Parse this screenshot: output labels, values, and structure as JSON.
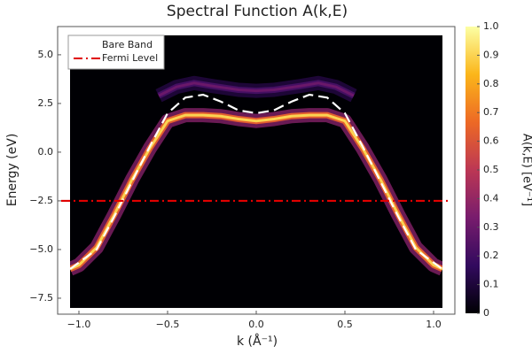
{
  "chart_data": {
    "type": "heatmap",
    "title": "Spectral Function A(k,E)",
    "x_label": "k (Å⁻¹)",
    "y_label": "Energy (eV)",
    "colorbar_label": "A(k,E) [eV⁻¹]",
    "xlim": [
      -1.12,
      1.12
    ],
    "ylim": [
      -8.32,
      6.45
    ],
    "xticks": [
      {
        "value": -1.0,
        "label": "−1.0"
      },
      {
        "value": -0.5,
        "label": "−0.5"
      },
      {
        "value": 0.0,
        "label": "0.0"
      },
      {
        "value": 0.5,
        "label": "0.5"
      },
      {
        "value": 1.0,
        "label": "1.0"
      }
    ],
    "yticks": [
      {
        "value": -7.5,
        "label": "−7.5"
      },
      {
        "value": -5.0,
        "label": "−5.0"
      },
      {
        "value": -2.5,
        "label": "−2.5"
      },
      {
        "value": 0.0,
        "label": "0.0"
      },
      {
        "value": 2.5,
        "label": "2.5"
      },
      {
        "value": 5.0,
        "label": "5.0"
      }
    ],
    "heatmap_xlim": [
      -1.05,
      1.05
    ],
    "heatmap_ylim": [
      -8.0,
      6.0
    ],
    "clim": [
      0,
      1
    ],
    "cticks": [
      0,
      0.1,
      0.2,
      0.3,
      0.4,
      0.5,
      0.6,
      0.7,
      0.8,
      0.9,
      {
        "value": 1.0,
        "label": "1.0"
      }
    ],
    "colormap": [
      "#000004",
      "#320a5e",
      "#781c6d",
      "#bc3754",
      "#ed6925",
      "#fbb61a",
      "#fcffa4"
    ],
    "intensity_bands": [
      {
        "intensity": 0.3,
        "x": [
          -0.55,
          -0.45,
          -0.35,
          -0.25,
          -0.1,
          0.0,
          0.1,
          0.25,
          0.35,
          0.45,
          0.55
        ],
        "values": [
          2.9,
          3.35,
          3.55,
          3.4,
          3.2,
          3.15,
          3.2,
          3.4,
          3.55,
          3.35,
          2.9
        ]
      },
      {
        "intensity": 0.9,
        "x": [
          -1.05,
          -1.0,
          -0.9,
          -0.8,
          -0.7,
          -0.6,
          -0.5,
          -0.4,
          -0.3,
          -0.2,
          -0.1,
          0.0,
          0.1,
          0.2,
          0.3,
          0.4,
          0.5,
          0.6,
          0.7,
          0.8,
          0.9,
          1.0,
          1.05
        ],
        "values": [
          -6.0,
          -5.8,
          -4.9,
          -3.2,
          -1.4,
          0.2,
          1.6,
          1.9,
          1.9,
          1.85,
          1.7,
          1.6,
          1.7,
          1.85,
          1.9,
          1.9,
          1.6,
          0.2,
          -1.4,
          -3.2,
          -4.9,
          -5.8,
          -6.0
        ]
      }
    ],
    "series": [
      {
        "name": "Bare Band",
        "color": "#ffffff",
        "x": [
          -1.05,
          -0.9,
          -0.8,
          -0.7,
          -0.6,
          -0.5,
          -0.4,
          -0.3,
          -0.2,
          -0.1,
          0.0,
          0.1,
          0.2,
          0.3,
          0.4,
          0.5,
          0.6,
          0.7,
          0.8,
          0.9,
          1.05
        ],
        "values": [
          -6.0,
          -5.0,
          -3.3,
          -1.5,
          0.3,
          2.0,
          2.8,
          2.95,
          2.6,
          2.15,
          2.0,
          2.15,
          2.6,
          2.95,
          2.8,
          2.0,
          0.3,
          -1.5,
          -3.3,
          -5.0,
          -6.0
        ]
      },
      {
        "name": "Fermi Level",
        "color": "#e00000",
        "x": [
          -1.1,
          1.1
        ],
        "values": [
          -2.5,
          -2.5
        ]
      }
    ],
    "legend": "top-left"
  }
}
